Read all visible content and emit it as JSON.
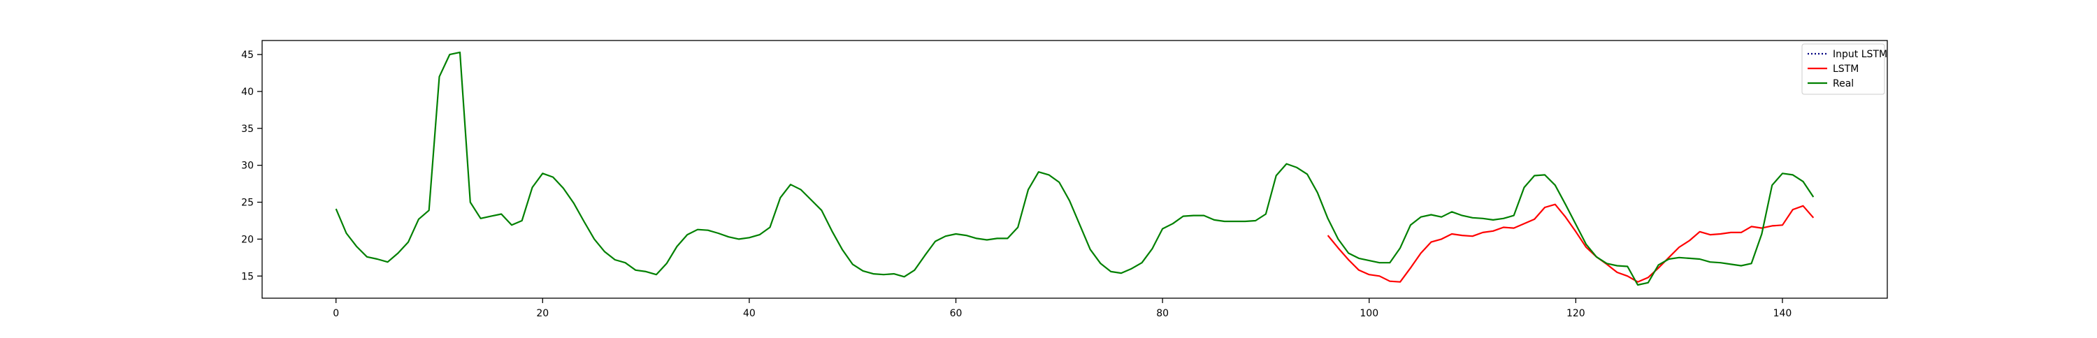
{
  "chart_data": {
    "type": "line",
    "title": "",
    "xlabel": "",
    "ylabel": "",
    "xlim": [
      -7.15,
      150.15
    ],
    "ylim": [
      12.0,
      46.9
    ],
    "xticks": [
      0,
      20,
      40,
      60,
      80,
      100,
      120,
      140
    ],
    "yticks": [
      15,
      20,
      25,
      30,
      35,
      40,
      45
    ],
    "grid": false,
    "legend_position": "top-right",
    "series": [
      {
        "name": "Input LSTM",
        "color": "#000080",
        "style": "dotted",
        "x": [],
        "y": []
      },
      {
        "name": "LSTM",
        "color": "#ff0000",
        "style": "solid",
        "x": [
          96,
          97,
          98,
          99,
          100,
          101,
          102,
          103,
          104,
          105,
          106,
          107,
          108,
          109,
          110,
          111,
          112,
          113,
          114,
          115,
          116,
          117,
          118,
          119,
          120,
          121,
          122,
          123,
          124,
          125,
          126,
          127,
          128,
          129,
          130,
          131,
          132,
          133,
          134,
          135,
          136,
          137,
          138,
          139,
          140,
          141,
          142,
          143
        ],
        "y": [
          20.5,
          18.8,
          17.2,
          15.8,
          15.2,
          15.0,
          14.3,
          14.2,
          16.1,
          18.1,
          19.6,
          20.0,
          20.7,
          20.5,
          20.4,
          20.9,
          21.1,
          21.6,
          21.5,
          22.1,
          22.7,
          24.3,
          24.7,
          23.0,
          21.0,
          18.9,
          17.6,
          16.6,
          15.5,
          15.0,
          14.2,
          14.8,
          16.1,
          17.5,
          18.9,
          19.8,
          21.0,
          20.6,
          20.7,
          20.9,
          20.9,
          21.7,
          21.5,
          21.8,
          21.9,
          24.0,
          24.5,
          22.9
        ]
      },
      {
        "name": "Real",
        "color": "#008000",
        "style": "solid",
        "x": [
          0,
          1,
          2,
          3,
          4,
          5,
          6,
          7,
          8,
          9,
          10,
          11,
          12,
          13,
          14,
          15,
          16,
          17,
          18,
          19,
          20,
          21,
          22,
          23,
          24,
          25,
          26,
          27,
          28,
          29,
          30,
          31,
          32,
          33,
          34,
          35,
          36,
          37,
          38,
          39,
          40,
          41,
          42,
          43,
          44,
          45,
          46,
          47,
          48,
          49,
          50,
          51,
          52,
          53,
          54,
          55,
          56,
          57,
          58,
          59,
          60,
          61,
          62,
          63,
          64,
          65,
          66,
          67,
          68,
          69,
          70,
          71,
          72,
          73,
          74,
          75,
          76,
          77,
          78,
          79,
          80,
          81,
          82,
          83,
          84,
          85,
          86,
          87,
          88,
          89,
          90,
          91,
          92,
          93,
          94,
          95,
          96,
          97,
          98,
          99,
          100,
          101,
          102,
          103,
          104,
          105,
          106,
          107,
          108,
          109,
          110,
          111,
          112,
          113,
          114,
          115,
          116,
          117,
          118,
          119,
          120,
          121,
          122,
          123,
          124,
          125,
          126,
          127,
          128,
          129,
          130,
          131,
          132,
          133,
          134,
          135,
          136,
          137,
          138,
          139,
          140,
          141,
          142,
          143
        ],
        "y": [
          24.1,
          20.8,
          19.0,
          17.6,
          17.3,
          16.9,
          18.1,
          19.6,
          22.7,
          23.9,
          42.0,
          45.0,
          45.3,
          25.0,
          22.8,
          23.1,
          23.4,
          21.9,
          22.5,
          27.0,
          28.9,
          28.4,
          26.9,
          24.9,
          22.4,
          20.0,
          18.3,
          17.2,
          16.8,
          15.8,
          15.6,
          15.2,
          16.7,
          19.0,
          20.6,
          21.3,
          21.2,
          20.8,
          20.3,
          20.0,
          20.2,
          20.6,
          21.6,
          25.6,
          27.4,
          26.7,
          25.3,
          23.9,
          21.1,
          18.6,
          16.6,
          15.7,
          15.3,
          15.2,
          15.3,
          14.9,
          15.8,
          17.8,
          19.7,
          20.4,
          20.7,
          20.5,
          20.1,
          19.9,
          20.1,
          20.1,
          21.6,
          26.7,
          29.1,
          28.7,
          27.7,
          25.2,
          21.9,
          18.6,
          16.7,
          15.6,
          15.4,
          16.0,
          16.8,
          18.7,
          21.4,
          22.1,
          23.1,
          23.2,
          23.2,
          22.6,
          22.4,
          22.4,
          22.4,
          22.5,
          23.4,
          28.6,
          30.2,
          29.7,
          28.8,
          26.3,
          22.8,
          20.0,
          18.1,
          17.4,
          17.1,
          16.8,
          16.8,
          18.8,
          21.9,
          23.0,
          23.3,
          23.0,
          23.7,
          23.2,
          22.9,
          22.8,
          22.6,
          22.8,
          23.2,
          27.0,
          28.6,
          28.7,
          27.3,
          24.7,
          22.0,
          19.3,
          17.6,
          16.7,
          16.4,
          16.3,
          13.8,
          14.1,
          16.5,
          17.3,
          17.5,
          17.4,
          17.3,
          16.9,
          16.8,
          16.6,
          16.4,
          16.7,
          20.7,
          27.3,
          28.9,
          28.7,
          27.8,
          25.7
        ]
      }
    ]
  }
}
